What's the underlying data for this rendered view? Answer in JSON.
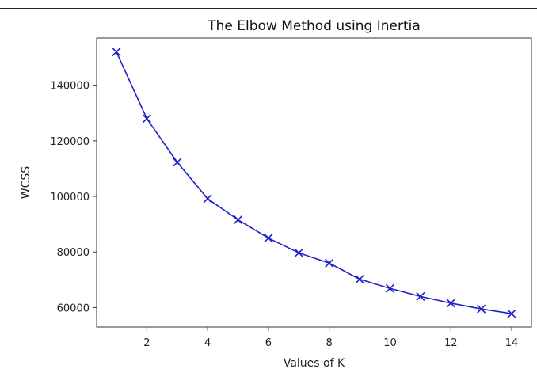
{
  "chart_data": {
    "type": "line",
    "title": "The Elbow Method using Inertia",
    "xlabel": "Values of K",
    "ylabel": "WCSS",
    "x": [
      1,
      2,
      3,
      4,
      5,
      6,
      7,
      8,
      9,
      10,
      11,
      12,
      13,
      14
    ],
    "series": [
      {
        "values": [
          152000,
          128000,
          112300,
          99200,
          91600,
          85000,
          79700,
          76000,
          70200,
          66900,
          64000,
          61600,
          59500,
          57800
        ],
        "color": "#2020c8",
        "marker": "x"
      }
    ],
    "xticks": [
      2,
      4,
      6,
      8,
      10,
      12,
      14
    ],
    "yticks": [
      60000,
      80000,
      100000,
      120000,
      140000
    ],
    "xlim": [
      0.35,
      14.65
    ],
    "ylim": [
      53000,
      157000
    ],
    "grid": false,
    "legend": "none"
  }
}
